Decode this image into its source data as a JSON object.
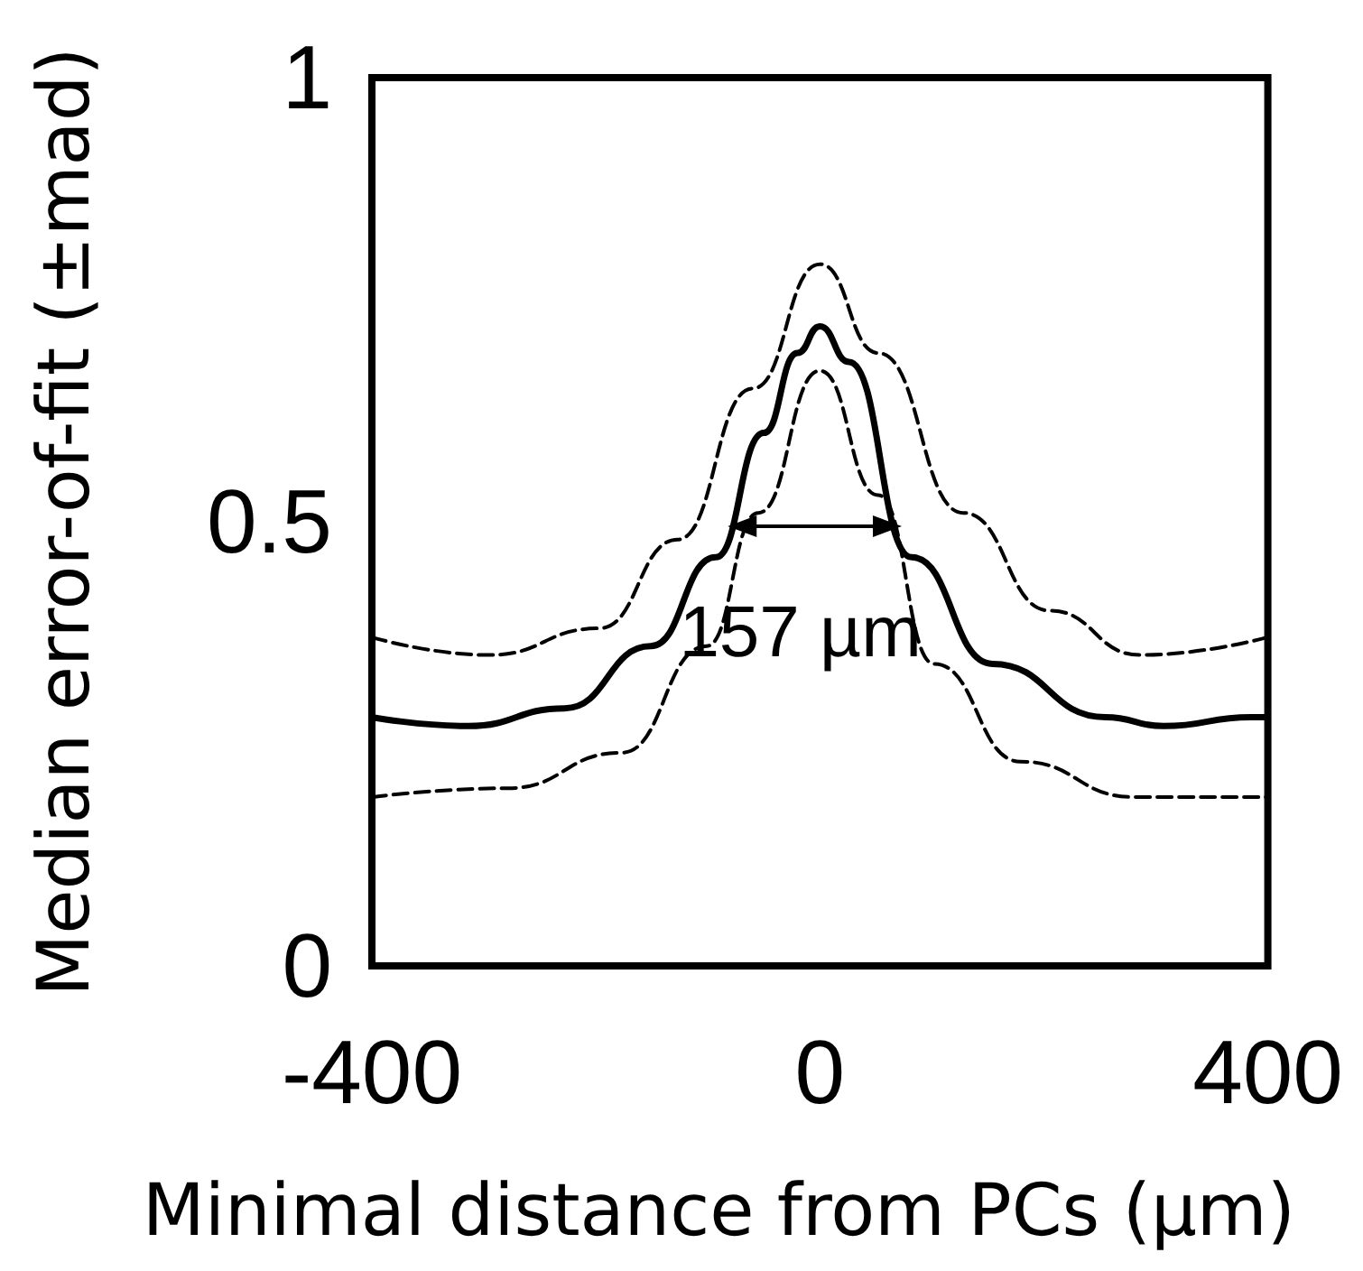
{
  "chart_data": {
    "type": "line",
    "xlabel": "Minimal distance from PCs (µm)",
    "ylabel": "Median error-of-fit (±mad)",
    "xlim": [
      -400,
      400
    ],
    "xticks": [
      -400,
      0,
      400
    ],
    "ylim": [
      0,
      1
    ],
    "yticks": [
      0,
      0.5,
      1
    ],
    "grid": false,
    "marker": "none",
    "annotations": [
      "157 µm"
    ],
    "series": [
      {
        "color": "#000000",
        "line_style": "solid",
        "x": [
          -400,
          -314,
          -228,
          -151,
          -93,
          -50,
          -20,
          0,
          26,
          82,
          154,
          255,
          307,
          385,
          400
        ],
        "values": [
          0.28,
          0.27,
          0.29,
          0.36,
          0.46,
          0.6,
          0.69,
          0.72,
          0.68,
          0.46,
          0.34,
          0.28,
          0.27,
          0.28,
          0.28
        ]
      },
      {
        "color": "#000000",
        "line_style": "dashed",
        "x": [
          -400,
          -295,
          -197,
          -127,
          -60,
          0,
          52,
          128,
          205,
          286,
          400
        ],
        "values": [
          0.37,
          0.35,
          0.38,
          0.48,
          0.65,
          0.79,
          0.69,
          0.51,
          0.4,
          0.35,
          0.37
        ]
      },
      {
        "color": "#000000",
        "line_style": "dashed",
        "x": [
          -400,
          -279,
          -177,
          -101,
          -55,
          0,
          52,
          102,
          179,
          281,
          400
        ],
        "values": [
          0.19,
          0.2,
          0.24,
          0.36,
          0.51,
          0.67,
          0.53,
          0.34,
          0.23,
          0.19,
          0.19
        ]
      }
    ]
  }
}
